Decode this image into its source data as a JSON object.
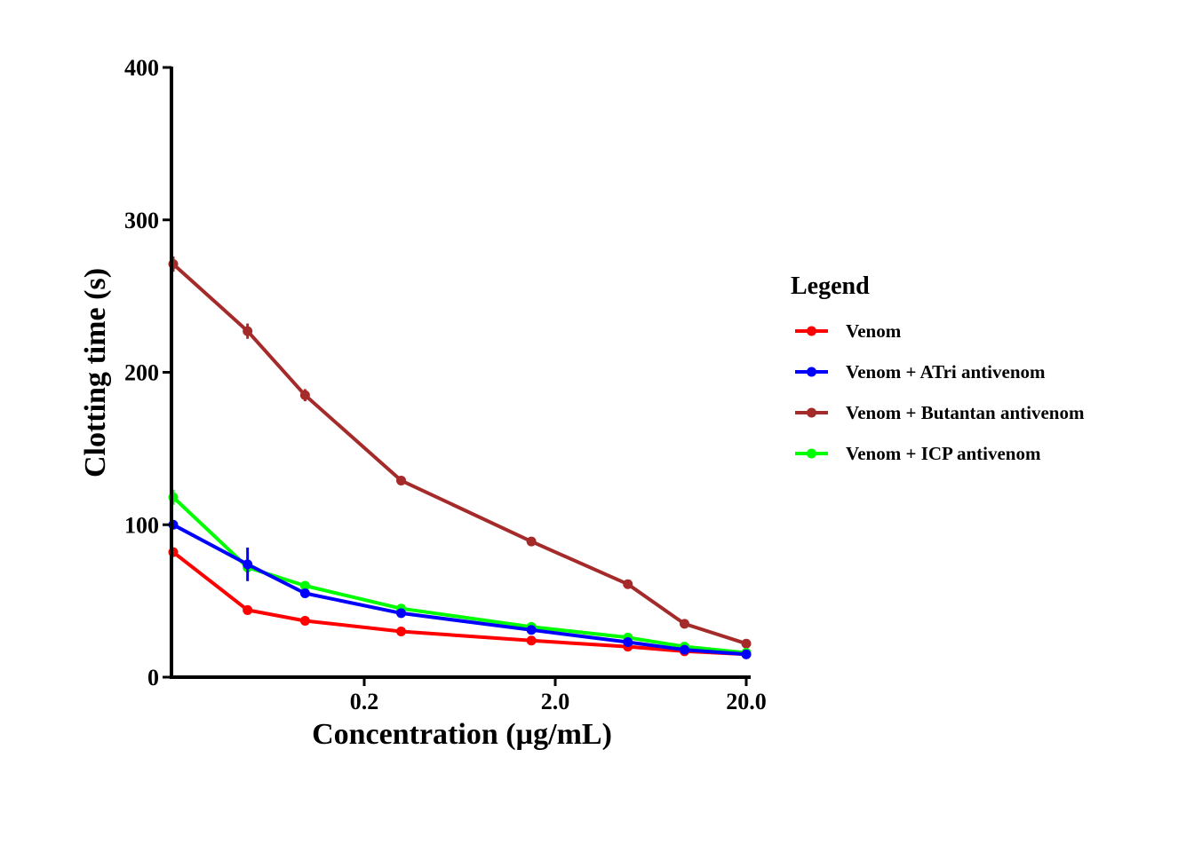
{
  "chart_data": {
    "type": "line",
    "xlabel": "Concentration (µg/mL)",
    "ylabel": "Clotting time (s)",
    "x_scale": "log",
    "xlim": [
      0.02,
      20.0
    ],
    "ylim": [
      0,
      400
    ],
    "x_ticks": [
      {
        "value": 0.2,
        "label": "0.2"
      },
      {
        "value": 2.0,
        "label": "2.0"
      },
      {
        "value": 20.0,
        "label": "20.0"
      }
    ],
    "y_ticks": [
      {
        "value": 0,
        "label": "0"
      },
      {
        "value": 100,
        "label": "100"
      },
      {
        "value": 200,
        "label": "200"
      },
      {
        "value": 300,
        "label": "300"
      },
      {
        "value": 400,
        "label": "400"
      }
    ],
    "x": [
      0.02,
      0.0488,
      0.0977,
      0.195,
      0.391,
      0.781,
      1.5625,
      3.125,
      6.25,
      12.5,
      20.0
    ],
    "series": [
      {
        "name": "Venom",
        "color": "#ff0000",
        "x": [
          0.02,
          0.049,
          0.098,
          0.312,
          1.5,
          4.8,
          9.5,
          20.0
        ],
        "values": [
          82,
          44,
          37,
          30,
          24,
          20,
          17,
          15
        ],
        "errors": [
          3,
          2,
          2,
          1,
          1,
          1,
          1,
          1
        ]
      },
      {
        "name": "Venom + ATri antivenom",
        "color": "#0000ff",
        "x": [
          0.02,
          0.049,
          0.098,
          0.312,
          1.5,
          4.8,
          9.5,
          20.0
        ],
        "values": [
          100,
          74,
          55,
          42,
          31,
          23,
          18,
          15
        ],
        "errors": [
          3,
          11,
          2,
          2,
          1,
          1,
          1,
          1
        ]
      },
      {
        "name": "Venom + Butantan antivenom",
        "color": "#a52a2a",
        "x": [
          0.02,
          0.049,
          0.098,
          0.312,
          1.5,
          4.8,
          9.5,
          20.0
        ],
        "values": [
          271,
          227,
          185,
          129,
          89,
          61,
          35,
          22
        ],
        "errors": [
          5,
          5,
          4,
          2,
          1,
          1,
          1,
          1
        ]
      },
      {
        "name": "Venom + ICP antivenom",
        "color": "#00ff00",
        "x": [
          0.02,
          0.049,
          0.098,
          0.312,
          1.5,
          4.8,
          9.5,
          20.0
        ],
        "values": [
          118,
          72,
          60,
          45,
          33,
          26,
          20,
          16
        ],
        "errors": [
          5,
          3,
          2,
          1,
          1,
          1,
          1,
          1
        ]
      }
    ],
    "legend": {
      "title": "Legend",
      "placement": "right"
    },
    "grid": false
  }
}
